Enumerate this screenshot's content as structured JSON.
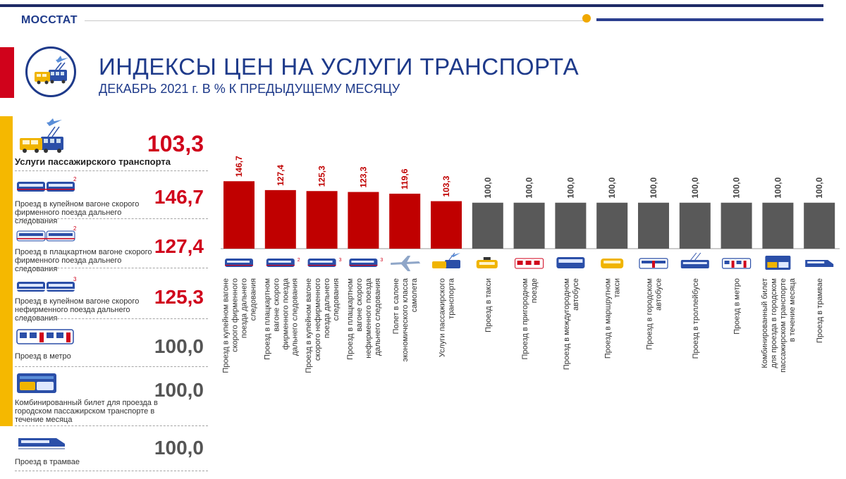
{
  "header": {
    "brand": "МОССТАТ",
    "title": "ИНДЕКСЫ ЦЕН НА УСЛУГИ ТРАНСПОРТА",
    "subtitle": "ДЕКАБРЬ 2021 г. В % К ПРЕДЫДУЩЕМУ МЕСЯЦУ"
  },
  "sidebar": {
    "items": [
      {
        "label": "Услуги пассажирского транспорта",
        "value": "103,3",
        "icon": "bus-trolleybus-icon"
      },
      {
        "label": "Проезд в купейном вагоне скорого фирменного поезда дальнего следования",
        "value": "146,7",
        "icon": "train-icon",
        "badge": "2"
      },
      {
        "label": "Проезд в плацкартном вагоне скорого фирменного поезда дальнего следования",
        "value": "127,4",
        "icon": "train-icon",
        "badge": "2"
      },
      {
        "label": "Проезд в купейном вагоне скорого нефирменного поезда дальнего следования",
        "value": "125,3",
        "icon": "train-icon",
        "badge": "3"
      },
      {
        "label": "Проезд в метро",
        "value": "100,0",
        "icon": "metro-icon"
      },
      {
        "label": "Комбинированный билет для проезда в городском пассажирском транспорте в течение месяца",
        "value": "100,0",
        "icon": "combined-ticket-icon"
      },
      {
        "label": "Проезд в трамвае",
        "value": "100,0",
        "icon": "tram-icon"
      }
    ]
  },
  "colors": {
    "accent_red": "#c00000",
    "bar_grey": "#595959",
    "brand_blue": "#1e3a8a",
    "yellow": "#f5b800"
  },
  "chart_data": {
    "type": "bar",
    "categories": [
      "Проезд в купейном вагоне скорого фирменного поезда дальнего следования",
      "Проезд в плацкартном вагоне скорого фирменного поезда дальнего следования",
      "Проезд в купейном вагоне скорого нефирменного поезда дальнего следования",
      "Проезд в плацкартном вагоне скорого нефирменного поезда дальнего следования",
      "Полет в салоне экономического класса самолета",
      "Услуги пассажирского транспорта",
      "Проезд в такси",
      "Проезд в пригородном поезде",
      "Проезд в междугородном автобусе",
      "Проезд в маршрутном такси",
      "Проезд в городском автобусе",
      "Проезд в троллейбусе",
      "Проезд в метро",
      "Комбинированный билет для проезда в городском пассажирском транспорте в течение месяца",
      "Проезд в трамвае"
    ],
    "values": [
      146.7,
      127.4,
      125.3,
      123.3,
      119.6,
      103.3,
      100.0,
      100.0,
      100.0,
      100.0,
      100.0,
      100.0,
      100.0,
      100.0,
      100.0
    ],
    "value_labels": [
      "146,7",
      "127,4",
      "125,3",
      "123,3",
      "119,6",
      "103,3",
      "100,0",
      "100,0",
      "100,0",
      "100,0",
      "100,0",
      "100,0",
      "100,0",
      "100,0",
      "100,0"
    ],
    "icons": [
      "train-icon",
      "train-icon",
      "train-icon",
      "train-icon",
      "airplane-icon",
      "bus-trolleybus-icon",
      "taxi-icon",
      "suburban-train-icon",
      "intercity-bus-icon",
      "minibus-icon",
      "city-bus-icon",
      "trolleybus-icon",
      "metro-icon",
      "combined-ticket-icon",
      "tram-icon"
    ],
    "icon_badges": [
      "",
      "2",
      "3",
      "3",
      "",
      "",
      "",
      "",
      "",
      "",
      "",
      "",
      "",
      "",
      ""
    ],
    "highlight_color": "#c00000",
    "base_color": "#595959",
    "ylim": [
      0,
      150
    ],
    "grid": false,
    "legend": "none",
    "title": "",
    "xlabel": "",
    "ylabel": ""
  }
}
